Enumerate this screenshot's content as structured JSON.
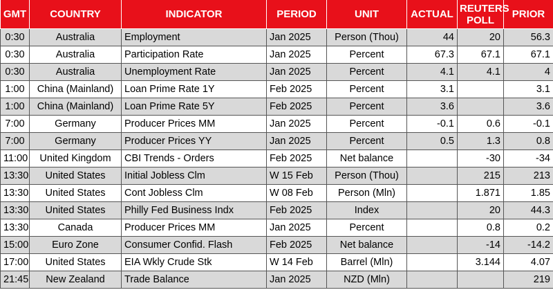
{
  "headers": {
    "gmt": "GMT",
    "country": "COUNTRY",
    "indicator": "INDICATOR",
    "period": "PERIOD",
    "unit": "UNIT",
    "actual": "ACTUAL",
    "poll": "REUTERS POLL",
    "prior": "PRIOR"
  },
  "colors": {
    "header_bg": "#e8101a",
    "alt_row": "#d9d9d9"
  },
  "rows": [
    {
      "gmt": "0:30",
      "country": "Australia",
      "indicator": "Employment",
      "period": "Jan 2025",
      "unit": "Person (Thou)",
      "actual": "44",
      "poll": "20",
      "prior": "56.3"
    },
    {
      "gmt": "0:30",
      "country": "Australia",
      "indicator": "Participation Rate",
      "period": "Jan 2025",
      "unit": "Percent",
      "actual": "67.3",
      "poll": "67.1",
      "prior": "67.1"
    },
    {
      "gmt": "0:30",
      "country": "Australia",
      "indicator": "Unemployment Rate",
      "period": "Jan 2025",
      "unit": "Percent",
      "actual": "4.1",
      "poll": "4.1",
      "prior": "4"
    },
    {
      "gmt": "1:00",
      "country": "China (Mainland)",
      "indicator": "Loan Prime Rate 1Y",
      "period": "Feb 2025",
      "unit": "Percent",
      "actual": "3.1",
      "poll": "",
      "prior": "3.1"
    },
    {
      "gmt": "1:00",
      "country": "China (Mainland)",
      "indicator": "Loan Prime Rate 5Y",
      "period": "Feb 2025",
      "unit": "Percent",
      "actual": "3.6",
      "poll": "",
      "prior": "3.6"
    },
    {
      "gmt": "7:00",
      "country": "Germany",
      "indicator": "Producer Prices MM",
      "period": "Jan 2025",
      "unit": "Percent",
      "actual": "-0.1",
      "poll": "0.6",
      "prior": "-0.1"
    },
    {
      "gmt": "7:00",
      "country": "Germany",
      "indicator": "Producer Prices YY",
      "period": "Jan 2025",
      "unit": "Percent",
      "actual": "0.5",
      "poll": "1.3",
      "prior": "0.8"
    },
    {
      "gmt": "11:00",
      "country": "United Kingdom",
      "indicator": "CBI Trends - Orders",
      "period": "Feb 2025",
      "unit": "Net balance",
      "actual": "",
      "poll": "-30",
      "prior": "-34"
    },
    {
      "gmt": "13:30",
      "country": "United States",
      "indicator": "Initial Jobless Clm",
      "period": "W 15 Feb",
      "unit": "Person (Thou)",
      "actual": "",
      "poll": "215",
      "prior": "213"
    },
    {
      "gmt": "13:30",
      "country": "United States",
      "indicator": "Cont Jobless Clm",
      "period": "W 08 Feb",
      "unit": "Person (Mln)",
      "actual": "",
      "poll": "1.871",
      "prior": "1.85"
    },
    {
      "gmt": "13:30",
      "country": "United States",
      "indicator": "Philly Fed Business Indx",
      "period": "Feb 2025",
      "unit": "Index",
      "actual": "",
      "poll": "20",
      "prior": "44.3"
    },
    {
      "gmt": "13:30",
      "country": "Canada",
      "indicator": "Producer Prices MM",
      "period": "Jan 2025",
      "unit": "Percent",
      "actual": "",
      "poll": "0.8",
      "prior": "0.2"
    },
    {
      "gmt": "15:00",
      "country": "Euro Zone",
      "indicator": "Consumer Confid. Flash",
      "period": "Feb 2025",
      "unit": "Net balance",
      "actual": "",
      "poll": "-14",
      "prior": "-14.2"
    },
    {
      "gmt": "17:00",
      "country": "United States",
      "indicator": "EIA Wkly Crude Stk",
      "period": "W 14 Feb",
      "unit": "Barrel (Mln)",
      "actual": "",
      "poll": "3.144",
      "prior": "4.07"
    },
    {
      "gmt": "21:45",
      "country": "New Zealand",
      "indicator": "Trade Balance",
      "period": "Jan 2025",
      "unit": "NZD (Mln)",
      "actual": "",
      "poll": "",
      "prior": "219"
    }
  ]
}
